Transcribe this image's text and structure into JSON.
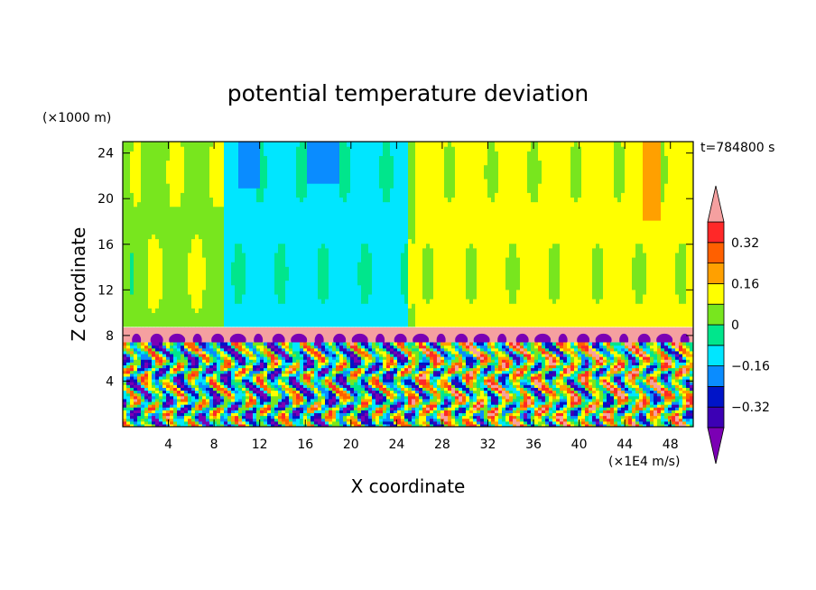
{
  "chart_data": {
    "type": "heatmap",
    "title": "potential temperature deviation",
    "xlabel": "X coordinate",
    "ylabel": "Z coordinate",
    "x_unit": "(×1E4 m/s)",
    "y_unit": "(×1000 m)",
    "time_label": "t=784800 s",
    "xlim": [
      0,
      50
    ],
    "ylim": [
      0,
      25
    ],
    "x_ticks": [
      4,
      8,
      12,
      16,
      20,
      24,
      28,
      32,
      36,
      40,
      44,
      48
    ],
    "y_ticks": [
      4,
      8,
      12,
      16,
      20,
      24
    ],
    "colorbar": {
      "levels": [
        -0.4,
        -0.32,
        -0.24,
        -0.16,
        -0.08,
        0,
        0.08,
        0.16,
        0.24,
        0.32,
        0.4
      ],
      "colors": [
        "#7b00b4",
        "#3c00b4",
        "#0014c8",
        "#0a8cff",
        "#00e6ff",
        "#00e68c",
        "#78e61e",
        "#ffff00",
        "#ffa000",
        "#ff6000",
        "#ff2828",
        "#f5a0a0"
      ],
      "tick_labels": [
        "0.32",
        "0.16",
        "0",
        "−0.16",
        "−0.32"
      ],
      "tick_values": [
        0.32,
        0.16,
        0,
        -0.16,
        -0.32
      ]
    },
    "regions": {
      "upper_layer": {
        "z_range": [
          8.8,
          25
        ],
        "value_range": [
          -0.3,
          0.2
        ]
      },
      "inversion_band": {
        "z_range": [
          7.4,
          8.7
        ],
        "value": 0.45
      },
      "lower_layer": {
        "z_range": [
          0,
          7.4
        ],
        "value_range": [
          -0.4,
          0.35
        ]
      }
    }
  }
}
